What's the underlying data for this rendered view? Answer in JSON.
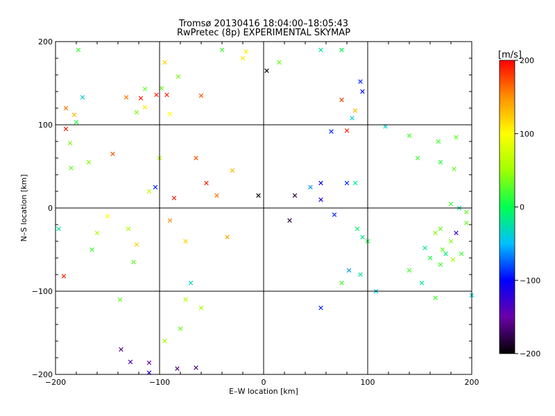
{
  "chart_data": {
    "type": "scatter",
    "title": "Tromsø 20130416 18:04:00–18:05:43",
    "subtitle": "RwPretec (8p) EXPERIMENTAL SKYMAP",
    "xlabel": "E–W location [km]",
    "ylabel": "N–S location [km]",
    "xlim": [
      -200,
      200
    ],
    "ylim": [
      -200,
      200
    ],
    "xticks": [
      -200,
      -100,
      0,
      100,
      200
    ],
    "yticks": [
      -200,
      -100,
      0,
      100,
      200
    ],
    "xtick_labels": [
      "−200",
      "−100",
      "0",
      "100",
      "200"
    ],
    "ytick_labels": [
      "−200",
      "−100",
      "0",
      "100",
      "200"
    ],
    "grid": true,
    "gridlines": [
      -100,
      0,
      100
    ],
    "marker_types": [
      "small dot",
      "cross"
    ],
    "colorbar": {
      "label": "[m/s]",
      "min": -200,
      "max": 200,
      "ticks": [
        200,
        100,
        0,
        -100,
        -200
      ],
      "tick_labels": [
        "200",
        "100",
        "0",
        "−100",
        "−200"
      ],
      "colormap": "rainbow",
      "colors": [
        "#000000",
        "#6a00a8",
        "#0000ff",
        "#00c0ff",
        "#00ff50",
        "#a0ff00",
        "#ffff00",
        "#ff9000",
        "#ff0000"
      ]
    },
    "points": [
      {
        "x": -178,
        "y": 190,
        "v": 20,
        "m": "x"
      },
      {
        "x": -180,
        "y": 103,
        "v": 10,
        "m": "x"
      },
      {
        "x": -190,
        "y": 95,
        "v": 190,
        "m": "x"
      },
      {
        "x": -190,
        "y": 120,
        "v": 160,
        "m": "x"
      },
      {
        "x": -182,
        "y": 112,
        "v": 130,
        "m": "x"
      },
      {
        "x": -174,
        "y": 133,
        "v": -40,
        "m": "x"
      },
      {
        "x": -186,
        "y": 78,
        "v": 40,
        "m": "x"
      },
      {
        "x": -185,
        "y": 48,
        "v": 30,
        "m": "x"
      },
      {
        "x": -192,
        "y": -82,
        "v": 190,
        "m": "x"
      },
      {
        "x": -197,
        "y": -25,
        "v": -20,
        "m": "x"
      },
      {
        "x": -168,
        "y": 55,
        "v": 40,
        "m": "x"
      },
      {
        "x": -165,
        "y": -50,
        "v": 20,
        "m": "x"
      },
      {
        "x": -160,
        "y": -30,
        "v": 60,
        "m": "x"
      },
      {
        "x": -145,
        "y": 65,
        "v": 170,
        "m": "x"
      },
      {
        "x": -150,
        "y": -10,
        "v": 100,
        "m": "x"
      },
      {
        "x": -130,
        "y": -25,
        "v": 60,
        "m": "x"
      },
      {
        "x": -122,
        "y": 115,
        "v": 40,
        "m": "x"
      },
      {
        "x": -132,
        "y": 133,
        "v": 160,
        "m": "x"
      },
      {
        "x": -118,
        "y": 132,
        "v": 190,
        "m": "x"
      },
      {
        "x": -114,
        "y": 143,
        "v": 30,
        "m": "x"
      },
      {
        "x": -114,
        "y": 121,
        "v": 110,
        "m": "x"
      },
      {
        "x": -103,
        "y": 136,
        "v": 190,
        "m": "x"
      },
      {
        "x": -93,
        "y": 136,
        "v": 190,
        "m": "x"
      },
      {
        "x": -98,
        "y": 144,
        "v": 30,
        "m": "x"
      },
      {
        "x": -95,
        "y": 175,
        "v": 120,
        "m": "x"
      },
      {
        "x": -82,
        "y": 158,
        "v": 40,
        "m": "x"
      },
      {
        "x": -60,
        "y": 135,
        "v": 170,
        "m": "x"
      },
      {
        "x": -90,
        "y": 113,
        "v": 100,
        "m": "x"
      },
      {
        "x": -100,
        "y": 60,
        "v": 60,
        "m": "x"
      },
      {
        "x": -104,
        "y": 25,
        "v": -90,
        "m": "x"
      },
      {
        "x": -110,
        "y": 20,
        "v": 60,
        "m": "x"
      },
      {
        "x": -86,
        "y": 12,
        "v": 190,
        "m": "x"
      },
      {
        "x": -122,
        "y": -44,
        "v": 120,
        "m": "x"
      },
      {
        "x": -138,
        "y": -110,
        "v": 30,
        "m": "x"
      },
      {
        "x": -125,
        "y": -65,
        "v": 30,
        "m": "x"
      },
      {
        "x": -137,
        "y": -170,
        "v": -160,
        "m": "x"
      },
      {
        "x": -128,
        "y": -185,
        "v": -130,
        "m": "x"
      },
      {
        "x": -110,
        "y": -186,
        "v": -150,
        "m": "x"
      },
      {
        "x": -110,
        "y": -198,
        "v": -110,
        "m": "x"
      },
      {
        "x": -83,
        "y": -193,
        "v": -160,
        "m": "x"
      },
      {
        "x": -65,
        "y": -192,
        "v": -160,
        "m": "x"
      },
      {
        "x": -95,
        "y": -160,
        "v": 50,
        "m": "x"
      },
      {
        "x": -80,
        "y": -145,
        "v": 30,
        "m": "x"
      },
      {
        "x": -60,
        "y": -120,
        "v": 50,
        "m": "x"
      },
      {
        "x": 15,
        "y": 175,
        "v": 30,
        "m": "x"
      },
      {
        "x": 3,
        "y": 165,
        "v": -200,
        "m": "x"
      },
      {
        "x": -17,
        "y": 188,
        "v": 110,
        "m": "x"
      },
      {
        "x": -20,
        "y": 180,
        "v": 110,
        "m": "x"
      },
      {
        "x": -40,
        "y": 190,
        "v": 20,
        "m": "x"
      },
      {
        "x": 55,
        "y": 190,
        "v": -20,
        "m": "x"
      },
      {
        "x": 75,
        "y": 190,
        "v": 0,
        "m": "x"
      },
      {
        "x": 93,
        "y": 152,
        "v": -90,
        "m": "x"
      },
      {
        "x": 95,
        "y": 140,
        "v": -100,
        "m": "x"
      },
      {
        "x": 75,
        "y": 130,
        "v": 180,
        "m": "x"
      },
      {
        "x": 88,
        "y": 117,
        "v": 130,
        "m": "x"
      },
      {
        "x": 85,
        "y": 108,
        "v": -40,
        "m": "x"
      },
      {
        "x": 80,
        "y": 93,
        "v": 190,
        "m": "x"
      },
      {
        "x": 65,
        "y": 92,
        "v": -90,
        "m": "x"
      },
      {
        "x": 117,
        "y": 98,
        "v": -40,
        "m": "x"
      },
      {
        "x": 140,
        "y": 87,
        "v": 20,
        "m": "x"
      },
      {
        "x": 185,
        "y": 85,
        "v": 30,
        "m": "x"
      },
      {
        "x": 168,
        "y": 80,
        "v": 20,
        "m": "x"
      },
      {
        "x": 170,
        "y": 55,
        "v": 10,
        "m": "x"
      },
      {
        "x": 183,
        "y": 47,
        "v": 30,
        "m": "x"
      },
      {
        "x": 148,
        "y": 60,
        "v": 20,
        "m": "x"
      },
      {
        "x": 180,
        "y": 5,
        "v": 20,
        "m": "x"
      },
      {
        "x": 195,
        "y": -5,
        "v": 30,
        "m": "x"
      },
      {
        "x": 188,
        "y": 0,
        "v": -20,
        "m": "x"
      },
      {
        "x": 170,
        "y": -25,
        "v": 30,
        "m": "x"
      },
      {
        "x": 195,
        "y": -18,
        "v": 30,
        "m": "x"
      },
      {
        "x": 185,
        "y": -30,
        "v": -130,
        "m": "x"
      },
      {
        "x": 180,
        "y": -40,
        "v": 40,
        "m": "x"
      },
      {
        "x": 165,
        "y": -30,
        "v": 40,
        "m": "x"
      },
      {
        "x": 172,
        "y": -50,
        "v": 30,
        "m": "x"
      },
      {
        "x": 190,
        "y": -55,
        "v": 20,
        "m": "x"
      },
      {
        "x": 155,
        "y": -48,
        "v": -20,
        "m": "x"
      },
      {
        "x": 175,
        "y": -55,
        "v": -10,
        "m": "x"
      },
      {
        "x": 182,
        "y": -62,
        "v": 50,
        "m": "x"
      },
      {
        "x": 170,
        "y": -68,
        "v": 20,
        "m": "x"
      },
      {
        "x": 160,
        "y": -60,
        "v": 10,
        "m": "x"
      },
      {
        "x": 93,
        "y": -80,
        "v": -20,
        "m": "x"
      },
      {
        "x": 82,
        "y": -75,
        "v": -60,
        "m": "x"
      },
      {
        "x": 75,
        "y": -90,
        "v": 20,
        "m": "x"
      },
      {
        "x": 108,
        "y": -100,
        "v": -40,
        "m": "x"
      },
      {
        "x": 140,
        "y": -75,
        "v": 20,
        "m": "x"
      },
      {
        "x": 152,
        "y": -90,
        "v": -20,
        "m": "x"
      },
      {
        "x": 165,
        "y": -108,
        "v": 20,
        "m": "x"
      },
      {
        "x": 200,
        "y": -105,
        "v": -40,
        "m": "x"
      },
      {
        "x": 55,
        "y": -120,
        "v": -90,
        "m": "x"
      },
      {
        "x": 68,
        "y": -8,
        "v": -90,
        "m": "x"
      },
      {
        "x": 90,
        "y": -25,
        "v": -10,
        "m": "x"
      },
      {
        "x": 95,
        "y": -35,
        "v": -20,
        "m": "x"
      },
      {
        "x": 100,
        "y": -40,
        "v": 10,
        "m": "x"
      },
      {
        "x": 80,
        "y": 30,
        "v": -90,
        "m": "x"
      },
      {
        "x": 88,
        "y": 30,
        "v": -20,
        "m": "x"
      },
      {
        "x": 55,
        "y": 30,
        "v": -100,
        "m": "x"
      },
      {
        "x": 45,
        "y": 25,
        "v": -60,
        "m": "x"
      },
      {
        "x": 55,
        "y": 10,
        "v": -110,
        "m": "x"
      },
      {
        "x": 30,
        "y": 15,
        "v": -180,
        "m": "x"
      },
      {
        "x": 25,
        "y": -15,
        "v": -180,
        "m": "x"
      },
      {
        "x": -5,
        "y": 15,
        "v": -200,
        "m": "x"
      },
      {
        "x": -55,
        "y": 30,
        "v": 190,
        "m": "x"
      },
      {
        "x": -45,
        "y": 15,
        "v": 160,
        "m": "x"
      },
      {
        "x": -65,
        "y": 60,
        "v": 170,
        "m": "x"
      },
      {
        "x": -30,
        "y": 45,
        "v": 130,
        "m": "x"
      },
      {
        "x": -90,
        "y": -15,
        "v": 150,
        "m": "x"
      },
      {
        "x": -75,
        "y": -40,
        "v": 120,
        "m": "x"
      },
      {
        "x": -35,
        "y": -35,
        "v": 140,
        "m": "x"
      },
      {
        "x": -70,
        "y": -90,
        "v": -30,
        "m": "x"
      },
      {
        "x": -75,
        "y": -110,
        "v": 60,
        "m": "x"
      }
    ]
  }
}
